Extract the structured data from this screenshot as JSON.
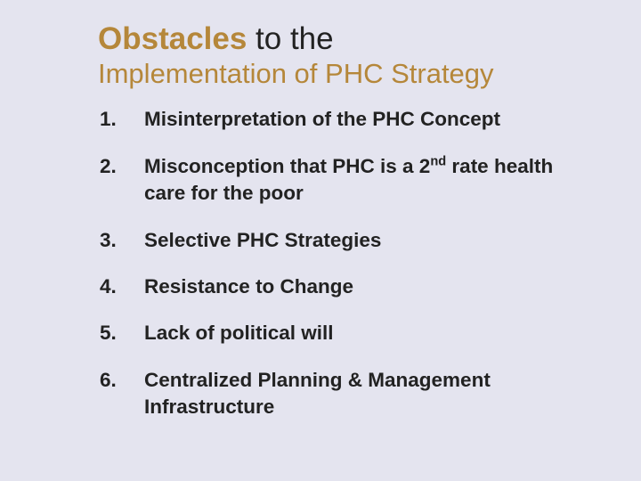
{
  "colors": {
    "background": "#e4e4ef",
    "heading_accent": "#b5873a",
    "body_text": "#222222",
    "title_plain": "#222222"
  },
  "title": {
    "strong": "Obstacles",
    "rest_line1": " to the",
    "line2": "Implementation of PHC Strategy"
  },
  "items": [
    {
      "num": "1.",
      "text": "Misinterpretation of the PHC Concept"
    },
    {
      "num": "2.",
      "pre": "Misconception that PHC is a 2",
      "sup": "nd",
      "post": " rate health care for the poor"
    },
    {
      "num": "3.",
      "text": "Selective PHC Strategies"
    },
    {
      "num": "4.",
      "text": "Resistance to Change"
    },
    {
      "num": "5.",
      "text": "Lack of political will"
    },
    {
      "num": "6.",
      "text": "Centralized Planning & Management Infrastructure"
    }
  ]
}
